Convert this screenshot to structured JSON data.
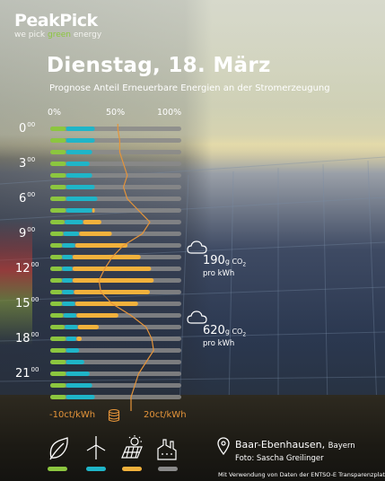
{
  "logo": {
    "name": "PeakPick",
    "tag_a": "we pick ",
    "tag_b": "green",
    "tag_c": " energy"
  },
  "header": {
    "date": "Dienstag, 18. März",
    "subtitle": "Prognose Anteil Erneuerbare Energien an der Stromerzeugung"
  },
  "scale_labels": [
    "0%",
    "50%",
    "100%"
  ],
  "hour_labels": [
    {
      "h": "0",
      "m": "00"
    },
    {
      "h": "3",
      "m": "00"
    },
    {
      "h": "6",
      "m": "00"
    },
    {
      "h": "9",
      "m": "00"
    },
    {
      "h": "12",
      "m": "00"
    },
    {
      "h": "15",
      "m": "00"
    },
    {
      "h": "18",
      "m": "00"
    },
    {
      "h": "21",
      "m": "00"
    }
  ],
  "annotations": [
    {
      "value": "190",
      "unit_a": "g CO",
      "unit_sub": "2",
      "per": "pro kWh"
    },
    {
      "value": "620",
      "unit_a": "g CO",
      "unit_sub": "2",
      "per": "pro kWh"
    }
  ],
  "price_scale": {
    "min_label": "-10ct/kWh",
    "max_label": "20ct/kWh",
    "coin_icon": "coins-icon"
  },
  "legend": [
    {
      "icon": "leaf-icon",
      "color": "#8cc63f"
    },
    {
      "icon": "wind-turbine-icon",
      "color": "#1fb5c8"
    },
    {
      "icon": "solar-panel-icon",
      "color": "#f1b13c"
    },
    {
      "icon": "power-plant-icon",
      "color": "#8a8a8a"
    }
  ],
  "location": {
    "place": "Baar-Ebenhausen",
    "state": "Bayern",
    "foto": "Foto: Sascha Greilinger",
    "pin_icon": "location-pin-icon"
  },
  "credit": "Mit Verwendung von Daten der ENTSO-E Transparenzplattform",
  "colors": {
    "biomass": "#8cc63f",
    "wind": "#1fb5c8",
    "solar": "#f1b13c",
    "conventional": "#8a8a8a",
    "price": "#e5943a"
  },
  "chart_data": {
    "type": "bar",
    "orientation": "horizontal-stacked",
    "ylabel": "",
    "xlim": [
      0,
      100
    ],
    "x_unit": "%",
    "categories": [
      "0",
      "1",
      "2",
      "3",
      "4",
      "5",
      "6",
      "7",
      "8",
      "9",
      "10",
      "11",
      "12",
      "13",
      "14",
      "15",
      "16",
      "17",
      "18",
      "19",
      "20",
      "21",
      "22",
      "23"
    ],
    "series": [
      {
        "color": "#8cc63f",
        "values": [
          12,
          12,
          12,
          12,
          12,
          12,
          12,
          12,
          11,
          10,
          9,
          9,
          9,
          9,
          9,
          9,
          10,
          11,
          12,
          12,
          12,
          12,
          12,
          12
        ]
      },
      {
        "color": "#1fb5c8",
        "values": [
          22,
          22,
          20,
          18,
          20,
          22,
          24,
          20,
          14,
          12,
          10,
          8,
          8,
          8,
          9,
          10,
          10,
          10,
          8,
          10,
          14,
          18,
          20,
          22
        ]
      },
      {
        "color": "#f1b13c",
        "values": [
          0,
          0,
          0,
          0,
          0,
          0,
          0,
          2,
          14,
          25,
          40,
          52,
          60,
          62,
          58,
          48,
          32,
          16,
          4,
          0,
          0,
          0,
          0,
          0
        ]
      }
    ],
    "price_series": {
      "xlim": [
        -10,
        20
      ],
      "values": [
        6.5,
        7,
        7,
        8,
        9,
        8,
        9,
        12,
        15,
        13,
        8,
        5,
        3,
        1.5,
        2,
        5,
        10,
        14,
        15.5,
        16,
        14,
        12,
        11,
        10
      ]
    }
  }
}
